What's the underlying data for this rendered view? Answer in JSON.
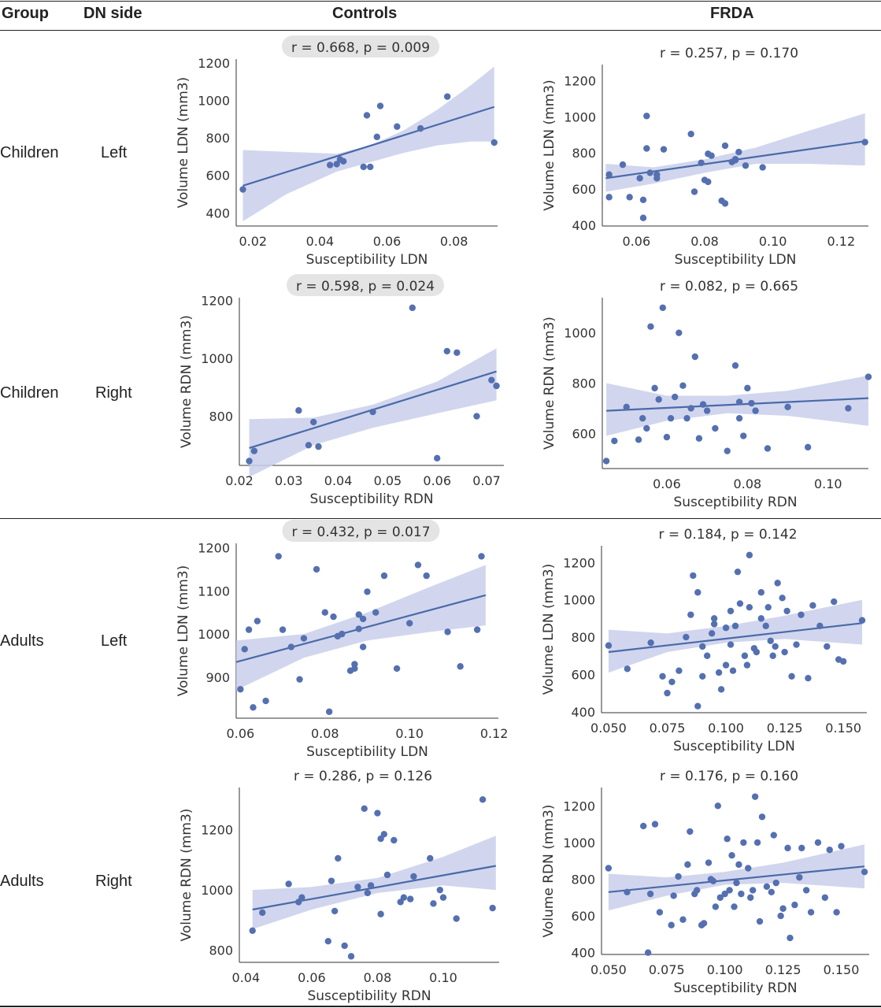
{
  "header": {
    "group": "Group",
    "dn_side": "DN side",
    "controls": "Controls",
    "frda": "FRDA"
  },
  "rows": [
    {
      "group": "Children",
      "side": "Left"
    },
    {
      "group": "Children",
      "side": "Right"
    },
    {
      "group": "Adults",
      "side": "Left"
    },
    {
      "group": "Adults",
      "side": "Right"
    }
  ],
  "colors": {
    "points": "#5470b0",
    "line": "#4a6aa8",
    "band": "#c9cfeb",
    "badge": "#e4e4e4"
  },
  "chart_data": [
    {
      "type": "scatter",
      "title": "r = 0.668, p = 0.009",
      "highlighted": true,
      "xlabel": "Susceptibility LDN",
      "ylabel": "Volume LDN (mm3)",
      "xlim": [
        0.015,
        0.093
      ],
      "ylim": [
        330,
        1220
      ],
      "xticks": [
        0.02,
        0.04,
        0.06,
        0.08
      ],
      "xtick_labels": [
        "0.02",
        "0.04",
        "0.06",
        "0.08"
      ],
      "yticks": [
        400,
        600,
        800,
        1000,
        1200
      ],
      "ytick_labels": [
        "400",
        "600",
        "800",
        "1000",
        "1200"
      ],
      "x": [
        0.017,
        0.043,
        0.045,
        0.046,
        0.047,
        0.053,
        0.054,
        0.055,
        0.057,
        0.058,
        0.063,
        0.07,
        0.078,
        0.092
      ],
      "y": [
        525,
        655,
        660,
        685,
        675,
        645,
        920,
        645,
        805,
        970,
        860,
        850,
        1020,
        775
      ],
      "fit": [
        [
          0.017,
          545
        ],
        [
          0.092,
          965
        ]
      ],
      "band_upper": [
        [
          0.017,
          735
        ],
        [
          0.045,
          715
        ],
        [
          0.055,
          760
        ],
        [
          0.065,
          840
        ],
        [
          0.075,
          950
        ],
        [
          0.085,
          1080
        ],
        [
          0.092,
          1180
        ]
      ],
      "band_lower": [
        [
          0.017,
          355
        ],
        [
          0.03,
          500
        ],
        [
          0.045,
          620
        ],
        [
          0.055,
          670
        ],
        [
          0.065,
          720
        ],
        [
          0.075,
          760
        ],
        [
          0.085,
          780
        ],
        [
          0.092,
          780
        ]
      ]
    },
    {
      "type": "scatter",
      "title": "r = 0.257, p = 0.170",
      "highlighted": false,
      "xlabel": "Susceptibility LDN",
      "ylabel": "Volume LDN (mm3)",
      "xlim": [
        0.05,
        0.128
      ],
      "ylim": [
        395,
        1290
      ],
      "xticks": [
        0.06,
        0.08,
        0.1,
        0.12
      ],
      "xtick_labels": [
        "0.06",
        "0.08",
        "0.10",
        "0.12"
      ],
      "yticks": [
        400,
        600,
        800,
        1000,
        1200
      ],
      "ytick_labels": [
        "400",
        "600",
        "800",
        "1000",
        "1200"
      ],
      "x": [
        0.052,
        0.052,
        0.056,
        0.058,
        0.061,
        0.062,
        0.062,
        0.063,
        0.063,
        0.064,
        0.066,
        0.066,
        0.068,
        0.076,
        0.077,
        0.079,
        0.08,
        0.081,
        0.081,
        0.082,
        0.085,
        0.086,
        0.086,
        0.088,
        0.089,
        0.089,
        0.09,
        0.092,
        0.097,
        0.127
      ],
      "y": [
        680,
        555,
        735,
        555,
        660,
        540,
        440,
        1005,
        825,
        690,
        680,
        660,
        820,
        905,
        585,
        745,
        650,
        640,
        795,
        785,
        535,
        840,
        520,
        750,
        765,
        760,
        805,
        730,
        720,
        860
      ],
      "fit": [
        [
          0.051,
          660
        ],
        [
          0.127,
          865
        ]
      ],
      "band_upper": [
        [
          0.051,
          740
        ],
        [
          0.065,
          720
        ],
        [
          0.08,
          765
        ],
        [
          0.095,
          830
        ],
        [
          0.11,
          920
        ],
        [
          0.127,
          1020
        ]
      ],
      "band_lower": [
        [
          0.051,
          585
        ],
        [
          0.065,
          630
        ],
        [
          0.08,
          690
        ],
        [
          0.095,
          740
        ],
        [
          0.11,
          740
        ],
        [
          0.127,
          730
        ]
      ]
    },
    {
      "type": "scatter",
      "title": "r = 0.598, p = 0.024",
      "highlighted": true,
      "xlabel": "Susceptibility RDN",
      "ylabel": "Volume RDN (mm3)",
      "xlim": [
        0.02,
        0.0735
      ],
      "ylim": [
        630,
        1210
      ],
      "xticks": [
        0.02,
        0.03,
        0.04,
        0.05,
        0.06,
        0.07
      ],
      "xtick_labels": [
        "0.02",
        "0.03",
        "0.04",
        "0.05",
        "0.06",
        "0.07"
      ],
      "yticks": [
        800,
        1000,
        1200
      ],
      "ytick_labels": [
        "800",
        "1000",
        "1200"
      ],
      "x": [
        0.022,
        0.023,
        0.032,
        0.034,
        0.035,
        0.036,
        0.047,
        0.055,
        0.06,
        0.062,
        0.064,
        0.068,
        0.071,
        0.072
      ],
      "y": [
        645,
        680,
        820,
        700,
        780,
        695,
        815,
        1175,
        655,
        1025,
        1020,
        800,
        925,
        905
      ],
      "fit": [
        [
          0.022,
          690
        ],
        [
          0.072,
          955
        ]
      ],
      "band_upper": [
        [
          0.022,
          790
        ],
        [
          0.035,
          795
        ],
        [
          0.047,
          840
        ],
        [
          0.06,
          920
        ],
        [
          0.072,
          1035
        ]
      ],
      "band_lower": [
        [
          0.022,
          590
        ],
        [
          0.035,
          700
        ],
        [
          0.047,
          760
        ],
        [
          0.06,
          810
        ],
        [
          0.072,
          855
        ]
      ]
    },
    {
      "type": "scatter",
      "title": "r = 0.082, p = 0.665",
      "highlighted": false,
      "xlabel": "Susceptibility RDN",
      "ylabel": "Volume RDN (mm3)",
      "xlim": [
        0.044,
        0.11
      ],
      "ylim": [
        460,
        1140
      ],
      "xticks": [
        0.06,
        0.08,
        0.1
      ],
      "xtick_labels": [
        "0.06",
        "0.08",
        "0.10"
      ],
      "yticks": [
        600,
        800,
        1000
      ],
      "ytick_labels": [
        "600",
        "800",
        "1000"
      ],
      "x": [
        0.045,
        0.047,
        0.05,
        0.053,
        0.054,
        0.055,
        0.056,
        0.057,
        0.058,
        0.059,
        0.06,
        0.061,
        0.062,
        0.063,
        0.064,
        0.065,
        0.066,
        0.067,
        0.068,
        0.069,
        0.07,
        0.072,
        0.075,
        0.077,
        0.078,
        0.078,
        0.079,
        0.08,
        0.081,
        0.082,
        0.085,
        0.09,
        0.095,
        0.105,
        0.11
      ],
      "y": [
        490,
        570,
        705,
        575,
        660,
        620,
        1025,
        780,
        735,
        1100,
        585,
        660,
        745,
        1000,
        790,
        660,
        700,
        905,
        580,
        715,
        690,
        620,
        530,
        870,
        725,
        660,
        590,
        780,
        720,
        690,
        540,
        705,
        545,
        700,
        825
      ],
      "fit": [
        [
          0.045,
          690
        ],
        [
          0.11,
          740
        ]
      ],
      "band_upper": [
        [
          0.045,
          800
        ],
        [
          0.06,
          750
        ],
        [
          0.075,
          750
        ],
        [
          0.09,
          770
        ],
        [
          0.11,
          830
        ]
      ],
      "band_lower": [
        [
          0.045,
          590
        ],
        [
          0.06,
          650
        ],
        [
          0.075,
          680
        ],
        [
          0.09,
          670
        ],
        [
          0.11,
          630
        ]
      ]
    },
    {
      "type": "scatter",
      "title": "r = 0.432, p = 0.017",
      "highlighted": true,
      "xlabel": "Susceptibility LDN",
      "ylabel": "Volume LDN (mm3)",
      "xlim": [
        0.059,
        0.121
      ],
      "ylim": [
        805,
        1210
      ],
      "xticks": [
        0.06,
        0.08,
        0.1,
        0.12
      ],
      "xtick_labels": [
        "0.06",
        "0.08",
        "0.10",
        "0.12"
      ],
      "yticks": [
        900,
        1000,
        1100,
        1200
      ],
      "ytick_labels": [
        "900",
        "1000",
        "1100",
        "1200"
      ],
      "x": [
        0.06,
        0.061,
        0.062,
        0.063,
        0.064,
        0.066,
        0.069,
        0.07,
        0.072,
        0.074,
        0.075,
        0.078,
        0.08,
        0.081,
        0.082,
        0.083,
        0.084,
        0.086,
        0.087,
        0.087,
        0.088,
        0.088,
        0.089,
        0.089,
        0.09,
        0.092,
        0.094,
        0.097,
        0.1,
        0.102,
        0.104,
        0.109,
        0.112,
        0.116,
        0.117
      ],
      "y": [
        872,
        965,
        1010,
        830,
        1030,
        845,
        1180,
        1010,
        970,
        895,
        990,
        1150,
        1050,
        820,
        1040,
        995,
        1000,
        915,
        920,
        930,
        1012,
        1045,
        970,
        1035,
        1098,
        1050,
        1135,
        920,
        1025,
        1160,
        1135,
        1005,
        925,
        1010,
        1180
      ],
      "fit": [
        [
          0.059,
          935
        ],
        [
          0.118,
          1090
        ]
      ],
      "band_upper": [
        [
          0.059,
          985
        ],
        [
          0.075,
          1000
        ],
        [
          0.09,
          1050
        ],
        [
          0.105,
          1110
        ],
        [
          0.118,
          1160
        ]
      ],
      "band_lower": [
        [
          0.059,
          870
        ],
        [
          0.075,
          945
        ],
        [
          0.09,
          985
        ],
        [
          0.105,
          1005
        ],
        [
          0.118,
          1020
        ]
      ]
    },
    {
      "type": "scatter",
      "title": "r = 0.184, p = 0.142",
      "highlighted": false,
      "xlabel": "Susceptibility LDN",
      "ylabel": "Volume LDN (mm3)",
      "xlim": [
        0.047,
        0.16
      ],
      "ylim": [
        395,
        1290
      ],
      "xticks": [
        0.05,
        0.075,
        0.1,
        0.125,
        0.15
      ],
      "xtick_labels": [
        "0.050",
        "0.075",
        "0.100",
        "0.125",
        "0.150"
      ],
      "yticks": [
        400,
        600,
        800,
        1000,
        1200
      ],
      "ytick_labels": [
        "400",
        "600",
        "800",
        "1000",
        "1200"
      ],
      "x": [
        0.05,
        0.058,
        0.068,
        0.073,
        0.075,
        0.077,
        0.08,
        0.083,
        0.085,
        0.086,
        0.088,
        0.088,
        0.09,
        0.09,
        0.092,
        0.094,
        0.095,
        0.095,
        0.097,
        0.098,
        0.1,
        0.1,
        0.102,
        0.102,
        0.103,
        0.104,
        0.105,
        0.106,
        0.108,
        0.109,
        0.11,
        0.11,
        0.112,
        0.113,
        0.115,
        0.115,
        0.117,
        0.118,
        0.119,
        0.12,
        0.121,
        0.122,
        0.124,
        0.125,
        0.126,
        0.128,
        0.13,
        0.132,
        0.135,
        0.137,
        0.14,
        0.143,
        0.146,
        0.148,
        0.15,
        0.158
      ],
      "y": [
        755,
        630,
        770,
        590,
        500,
        560,
        620,
        800,
        920,
        1130,
        430,
        1040,
        750,
        590,
        700,
        820,
        870,
        900,
        610,
        520,
        650,
        850,
        760,
        940,
        620,
        860,
        1150,
        980,
        700,
        650,
        960,
        1240,
        740,
        720,
        900,
        1040,
        860,
        960,
        780,
        700,
        750,
        1090,
        1010,
        720,
        940,
        590,
        760,
        920,
        580,
        970,
        860,
        750,
        990,
        680,
        670,
        890
      ],
      "fit": [
        [
          0.05,
          720
        ],
        [
          0.158,
          875
        ]
      ],
      "band_upper": [
        [
          0.05,
          840
        ],
        [
          0.075,
          820
        ],
        [
          0.1,
          860
        ],
        [
          0.125,
          915
        ],
        [
          0.158,
          1000
        ]
      ],
      "band_lower": [
        [
          0.05,
          610
        ],
        [
          0.075,
          720
        ],
        [
          0.1,
          770
        ],
        [
          0.125,
          790
        ],
        [
          0.158,
          760
        ]
      ]
    },
    {
      "type": "scatter",
      "title": "r = 0.286, p = 0.126",
      "highlighted": false,
      "xlabel": "Susceptibility RDN",
      "ylabel": "Volume RDN (mm3)",
      "xlim": [
        0.038,
        0.117
      ],
      "ylim": [
        760,
        1340
      ],
      "xticks": [
        0.04,
        0.06,
        0.08,
        0.1
      ],
      "xtick_labels": [
        "0.04",
        "0.06",
        "0.08",
        "0.10"
      ],
      "yticks": [
        800,
        1000,
        1200
      ],
      "ytick_labels": [
        "800",
        "1000",
        "1200"
      ],
      "x": [
        0.042,
        0.045,
        0.053,
        0.056,
        0.057,
        0.065,
        0.066,
        0.067,
        0.068,
        0.07,
        0.072,
        0.074,
        0.076,
        0.077,
        0.078,
        0.08,
        0.081,
        0.081,
        0.082,
        0.083,
        0.085,
        0.087,
        0.088,
        0.09,
        0.091,
        0.096,
        0.097,
        0.099,
        0.1,
        0.104,
        0.112,
        0.115
      ],
      "y": [
        865,
        925,
        1020,
        960,
        975,
        830,
        1030,
        930,
        1105,
        815,
        780,
        1010,
        1270,
        990,
        1015,
        1255,
        1170,
        920,
        1185,
        1050,
        1165,
        960,
        975,
        970,
        1045,
        1105,
        955,
        1000,
        975,
        905,
        1300,
        940
      ],
      "fit": [
        [
          0.042,
          935
        ],
        [
          0.116,
          1080
        ]
      ],
      "band_upper": [
        [
          0.042,
          1000
        ],
        [
          0.06,
          1010
        ],
        [
          0.08,
          1040
        ],
        [
          0.1,
          1110
        ],
        [
          0.116,
          1180
        ]
      ],
      "band_lower": [
        [
          0.042,
          870
        ],
        [
          0.06,
          935
        ],
        [
          0.08,
          990
        ],
        [
          0.1,
          1015
        ],
        [
          0.116,
          1000
        ]
      ]
    },
    {
      "type": "scatter",
      "title": "r = 0.176, p = 0.160",
      "highlighted": false,
      "xlabel": "Susceptibility RDN",
      "ylabel": "Volume RDN (mm3)",
      "xlim": [
        0.047,
        0.162
      ],
      "ylim": [
        390,
        1300
      ],
      "xticks": [
        0.05,
        0.075,
        0.1,
        0.125,
        0.15
      ],
      "xtick_labels": [
        "0.050",
        "0.075",
        "0.100",
        "0.125",
        "0.150"
      ],
      "yticks": [
        400,
        600,
        800,
        1000,
        1200
      ],
      "ytick_labels": [
        "400",
        "600",
        "800",
        "1000",
        "1200"
      ],
      "x": [
        0.05,
        0.058,
        0.065,
        0.067,
        0.068,
        0.07,
        0.072,
        0.077,
        0.078,
        0.08,
        0.082,
        0.084,
        0.085,
        0.087,
        0.088,
        0.09,
        0.091,
        0.093,
        0.094,
        0.095,
        0.096,
        0.097,
        0.098,
        0.1,
        0.101,
        0.102,
        0.103,
        0.104,
        0.105,
        0.106,
        0.107,
        0.108,
        0.11,
        0.111,
        0.112,
        0.113,
        0.114,
        0.115,
        0.116,
        0.118,
        0.12,
        0.121,
        0.122,
        0.124,
        0.125,
        0.127,
        0.128,
        0.13,
        0.132,
        0.133,
        0.135,
        0.137,
        0.14,
        0.143,
        0.145,
        0.148,
        0.15,
        0.16
      ],
      "y": [
        860,
        730,
        1090,
        400,
        720,
        1100,
        620,
        550,
        710,
        815,
        580,
        880,
        1060,
        720,
        740,
        550,
        560,
        890,
        800,
        790,
        650,
        1200,
        700,
        720,
        1020,
        740,
        930,
        650,
        780,
        880,
        720,
        1000,
        860,
        700,
        740,
        1250,
        1000,
        570,
        1140,
        760,
        730,
        1040,
        780,
        600,
        640,
        970,
        480,
        660,
        810,
        970,
        740,
        620,
        1000,
        700,
        960,
        620,
        980,
        840
      ],
      "fit": [
        [
          0.05,
          730
        ],
        [
          0.16,
          870
        ]
      ],
      "band_upper": [
        [
          0.05,
          830
        ],
        [
          0.075,
          810
        ],
        [
          0.1,
          840
        ],
        [
          0.125,
          890
        ],
        [
          0.16,
          990
        ]
      ],
      "band_lower": [
        [
          0.05,
          630
        ],
        [
          0.075,
          710
        ],
        [
          0.1,
          770
        ],
        [
          0.125,
          780
        ],
        [
          0.16,
          750
        ]
      ]
    }
  ]
}
